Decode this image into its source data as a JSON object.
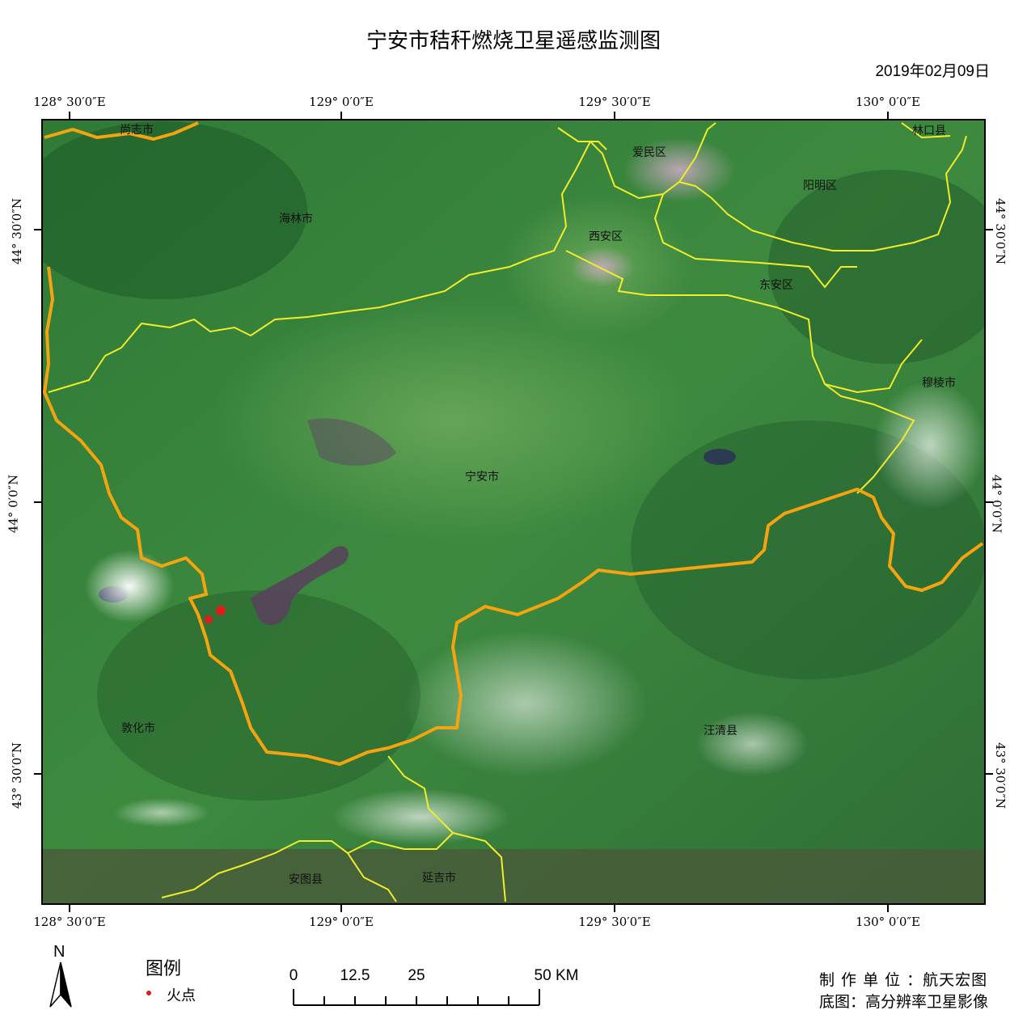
{
  "title": "宁安市秸秆燃烧卫星遥感监测图",
  "date": "2019年02月09日",
  "longitude_labels": [
    "128° 30′0″E",
    "129° 0′0″E",
    "129° 30′0″E",
    "130° 0′0″E"
  ],
  "latitude_labels": [
    "44° 30′0″N",
    "44° 0′0″N",
    "43° 30′0″N"
  ],
  "places": [
    "尚志市",
    "林口县",
    "爱民区",
    "阳明区",
    "海林市",
    "西安区",
    "东安区",
    "穆棱市",
    "宁安市",
    "敦化市",
    "汪清县",
    "安图县",
    "延吉市"
  ],
  "legend": {
    "title": "图例",
    "items": [
      {
        "label": "火点",
        "color": "#e11b1b"
      }
    ]
  },
  "north": "N",
  "scale": {
    "labels": [
      "0",
      "12.5",
      "25",
      "50 KM"
    ]
  },
  "credits": {
    "maker": "制 作 单 位 ：航天宏图",
    "basemap": "底图：高分辨率卫星影像"
  },
  "colors": {
    "county_border": "#f5a40f",
    "district_border": "#f2ec2a",
    "fire": "#e11b1b"
  }
}
